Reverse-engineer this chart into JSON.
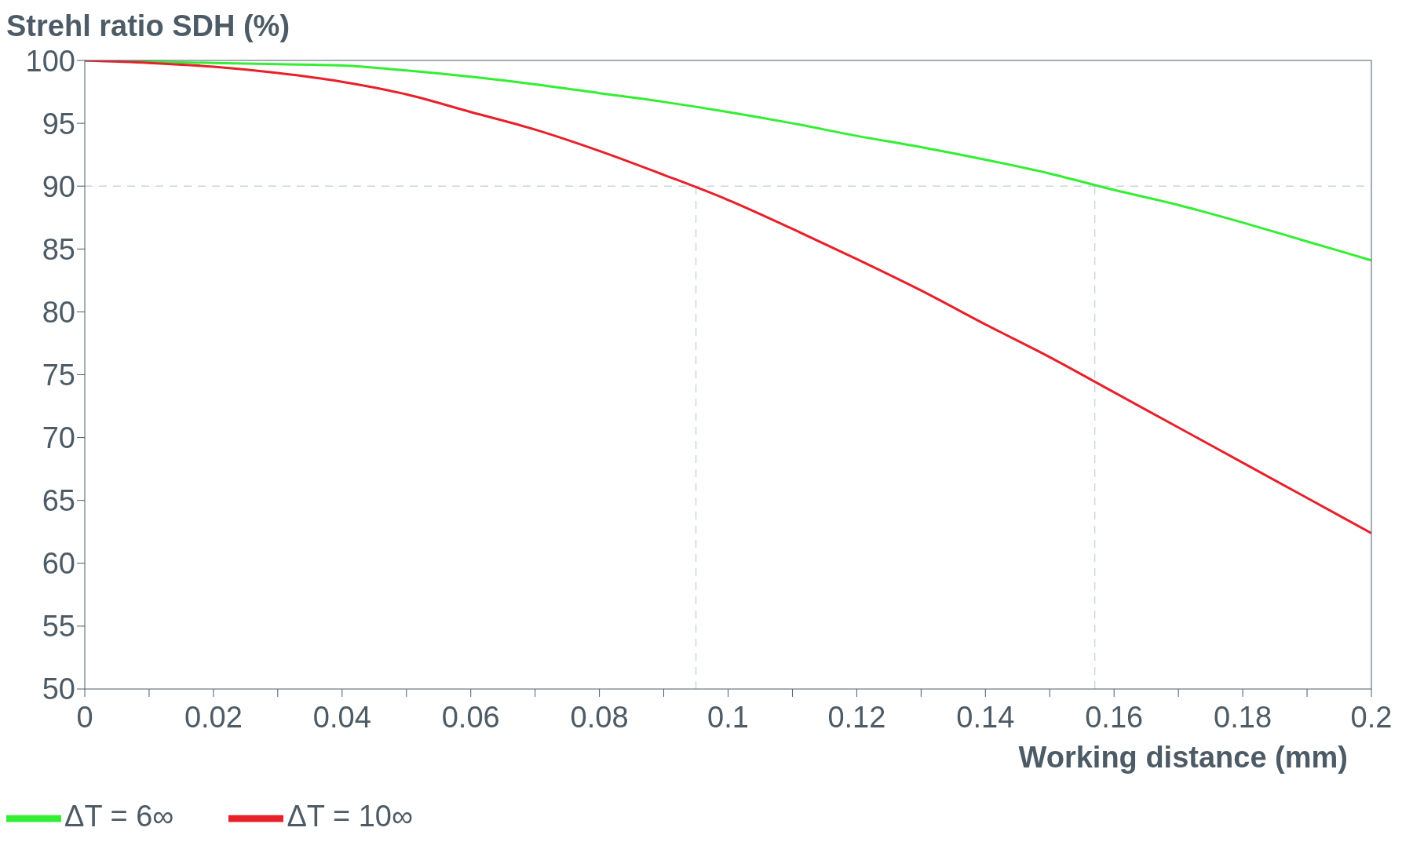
{
  "chart_data": {
    "type": "line",
    "ylabel": "Strehl ratio SDH (%)",
    "xlabel": "Working distance (mm)",
    "x": [
      0,
      0.01,
      0.02,
      0.03,
      0.04,
      0.05,
      0.06,
      0.07,
      0.08,
      0.09,
      0.1,
      0.11,
      0.12,
      0.13,
      0.14,
      0.15,
      0.16,
      0.17,
      0.18,
      0.19,
      0.2
    ],
    "series": [
      {
        "name": "ΔT = 6∞",
        "color": "#33ee33",
        "values": [
          100,
          99.9,
          99.8,
          99.7,
          99.6,
          99.2,
          98.7,
          98.1,
          97.4,
          96.7,
          95.9,
          95.0,
          94.0,
          93.1,
          92.1,
          91.0,
          89.7,
          88.5,
          87.1,
          85.6,
          84.1
        ]
      },
      {
        "name": "ΔT = 10∞",
        "color": "#e8202a",
        "values": [
          100,
          99.8,
          99.5,
          99.0,
          98.3,
          97.3,
          95.9,
          94.5,
          92.8,
          90.9,
          88.9,
          86.6,
          84.2,
          81.7,
          79.0,
          76.4,
          73.6,
          70.8,
          68.0,
          65.2,
          62.4
        ]
      }
    ],
    "xlim": [
      0,
      0.2
    ],
    "xticks": [
      0,
      {
        "value": 0.01,
        "label": null
      },
      0.02,
      {
        "value": 0.03,
        "label": null
      },
      0.04,
      {
        "value": 0.05,
        "label": null
      },
      0.06,
      {
        "value": 0.07,
        "label": null
      },
      0.08,
      {
        "value": 0.09,
        "label": null
      },
      0.1,
      {
        "value": 0.11,
        "label": null
      },
      0.12,
      {
        "value": 0.13,
        "label": null
      },
      0.14,
      {
        "value": 0.15,
        "label": null
      },
      0.16,
      {
        "value": 0.17,
        "label": null
      },
      0.18,
      {
        "value": 0.19,
        "label": null
      },
      0.2
    ],
    "ylim": [
      50,
      100
    ],
    "yticks": [
      50,
      55,
      60,
      65,
      70,
      75,
      80,
      85,
      90,
      95,
      100
    ],
    "ref_lines": [
      {
        "axis": "y",
        "value": 90,
        "line_style": "dashed",
        "color": "#c8d8dc"
      },
      {
        "axis": "x",
        "value": 0.095,
        "line_style": "dashed",
        "color": "#c8d8dc"
      },
      {
        "axis": "x",
        "value": 0.157,
        "line_style": "dashed",
        "color": "#c8d8dc"
      }
    ],
    "grid": false,
    "legend": "bottom left",
    "marker": "none",
    "line_style": "solid"
  }
}
